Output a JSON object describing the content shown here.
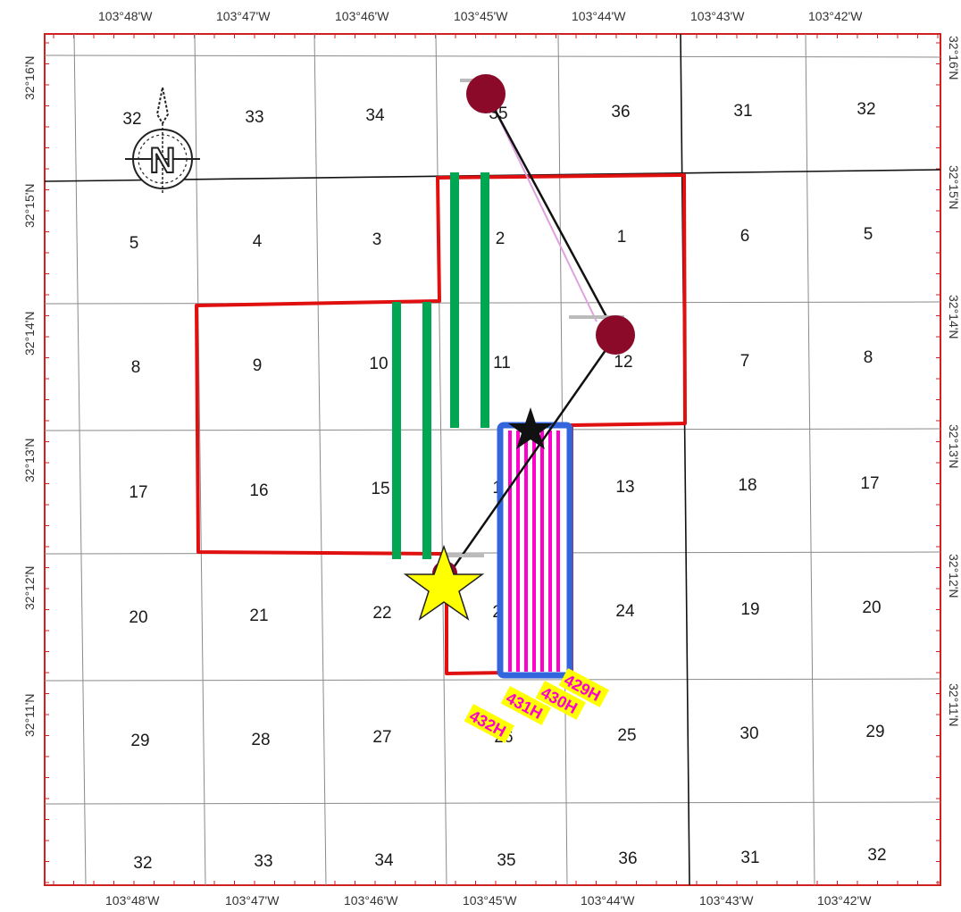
{
  "top_axis_labels": [
    "103°48'W",
    "103°47'W",
    "103°46'W",
    "103°45'W",
    "103°44'W",
    "103°43'W",
    "103°42'W"
  ],
  "bottom_axis_labels": [
    "103°48'W",
    "103°47'W",
    "103°46'W",
    "103°45'W",
    "103°44'W",
    "103°43'W",
    "103°42'W"
  ],
  "left_axis_labels": [
    "32°16'N",
    "32°15'N",
    "32°14'N",
    "32°13'N",
    "32°12'N",
    "32°11'N"
  ],
  "right_axis_labels": [
    "32°16'N",
    "32°15'N",
    "32°14'N",
    "32°13'N",
    "32°12'N",
    "32°11'N"
  ],
  "sections": {
    "row1": [
      "32",
      "33",
      "34",
      "35",
      "36",
      "31",
      "32"
    ],
    "row2": [
      "5",
      "4",
      "3",
      "2",
      "1",
      "6",
      "5"
    ],
    "row3": [
      "8",
      "9",
      "10",
      "11",
      "12",
      "7",
      "8"
    ],
    "row4": [
      "17",
      "16",
      "15",
      "14",
      "13",
      "18",
      "17"
    ],
    "row5": [
      "20",
      "21",
      "22",
      "23",
      "24",
      "19",
      "20"
    ],
    "row6": [
      "29",
      "28",
      "27",
      "26",
      "25",
      "30",
      "29"
    ],
    "row7": [
      "32",
      "33",
      "34",
      "35",
      "36",
      "31",
      "32"
    ]
  },
  "well_labels": [
    "432H",
    "431H",
    "430H",
    "429H"
  ],
  "compass_letter": "N",
  "colors": {
    "lease_outline": "#e01010",
    "lateral_green": "#00a651",
    "unit_blue": "#3366dd",
    "lateral_magenta": "#ff00cc",
    "label_bg": "#ffff00",
    "well_dot": "#8b0a2a",
    "star": "#ffff00"
  },
  "icons": [
    "north-arrow-icon",
    "star-icon",
    "well-dot-icon"
  ]
}
